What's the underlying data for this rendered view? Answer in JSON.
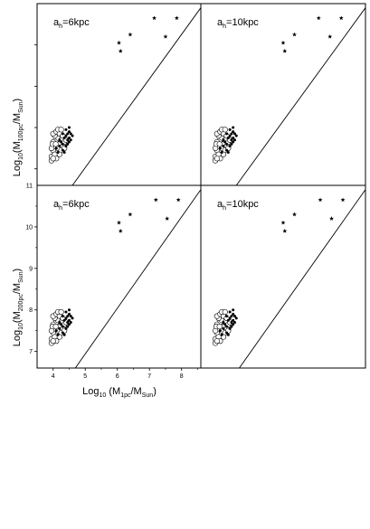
{
  "chart_data": {
    "type": "scatter",
    "xlabel": {
      "main": "Log",
      "sub1": "10",
      "mid": " (M",
      "sub2": "1pc",
      "sep": "/M",
      "sub3": "Sun",
      "end": ")"
    },
    "ylabel_top": {
      "main": "Log",
      "sub1": "10",
      "mid": "(M",
      "sub2": "100pc",
      "sep": "/M",
      "sub3": "Sun",
      "end": ")"
    },
    "ylabel_bottom": {
      "main": "Log",
      "sub1": "10",
      "mid": "(M",
      "sub2": "200pc",
      "sep": "/M",
      "sub3": "Sun",
      "end": ")"
    },
    "xlim": [
      3.5,
      8.6
    ],
    "xticks": [
      "4",
      "5",
      "6",
      "7",
      "8"
    ],
    "ylim_bottom": [
      6.6,
      11.0
    ],
    "yticks_bottom": [
      "7",
      "8",
      "9",
      "10"
    ],
    "ytick_top_visible": "11",
    "panels": [
      {
        "label": {
          "a": "a",
          "sub": "h",
          "rest": "=6kpc"
        },
        "stars": [
          [
            6.05,
            10.05
          ],
          [
            6.1,
            9.85
          ],
          [
            6.4,
            10.25
          ],
          [
            7.15,
            10.65
          ],
          [
            7.5,
            10.2
          ],
          [
            7.85,
            10.65
          ]
        ],
        "line": [
          [
            4.6,
            6.6
          ],
          [
            8.6,
            10.9
          ]
        ]
      },
      {
        "label": {
          "a": "a",
          "sub": "h",
          "rest": "=10kpc"
        },
        "stars": [
          [
            6.05,
            10.05
          ],
          [
            6.1,
            9.85
          ],
          [
            6.4,
            10.25
          ],
          [
            7.15,
            10.65
          ],
          [
            7.5,
            10.2
          ],
          [
            7.85,
            10.65
          ]
        ],
        "line": [
          [
            4.6,
            6.6
          ],
          [
            8.6,
            10.9
          ]
        ]
      },
      {
        "label": {
          "a": "a",
          "sub": "h",
          "rest": "=6kpc"
        },
        "stars": [
          [
            6.05,
            10.1
          ],
          [
            6.1,
            9.9
          ],
          [
            6.4,
            10.3
          ],
          [
            7.2,
            10.65
          ],
          [
            7.55,
            10.2
          ],
          [
            7.9,
            10.65
          ]
        ],
        "line": [
          [
            4.6,
            6.5
          ],
          [
            8.6,
            10.9
          ]
        ]
      },
      {
        "label": {
          "a": "a",
          "sub": "h",
          "rest": "=10kpc"
        },
        "stars": [
          [
            6.05,
            10.1
          ],
          [
            6.1,
            9.9
          ],
          [
            6.4,
            10.3
          ],
          [
            7.2,
            10.65
          ],
          [
            7.55,
            10.2
          ],
          [
            7.9,
            10.65
          ]
        ],
        "line": [
          [
            4.6,
            6.5
          ],
          [
            8.6,
            10.9
          ]
        ]
      }
    ],
    "circles_per_panel": [
      [
        3.95,
        7.3
      ],
      [
        4.0,
        7.45
      ],
      [
        4.05,
        7.55
      ],
      [
        4.1,
        7.7
      ],
      [
        4.0,
        7.65
      ],
      [
        3.95,
        7.5
      ],
      [
        4.05,
        7.35
      ],
      [
        4.1,
        7.25
      ],
      [
        4.15,
        7.5
      ],
      [
        4.2,
        7.6
      ],
      [
        4.15,
        7.75
      ],
      [
        4.05,
        7.8
      ],
      [
        4.0,
        7.85
      ],
      [
        4.1,
        7.9
      ],
      [
        4.2,
        7.85
      ],
      [
        4.25,
        7.7
      ],
      [
        4.3,
        7.55
      ],
      [
        4.25,
        7.45
      ],
      [
        4.35,
        7.65
      ],
      [
        4.3,
        7.8
      ],
      [
        3.95,
        7.2
      ],
      [
        4.0,
        7.25
      ],
      [
        4.2,
        7.35
      ],
      [
        4.35,
        7.5
      ],
      [
        4.4,
        7.7
      ],
      [
        4.15,
        7.95
      ],
      [
        4.25,
        7.95
      ],
      [
        3.98,
        7.6
      ],
      [
        4.08,
        7.6
      ]
    ],
    "dots_per_panel": [
      [
        4.3,
        7.6
      ],
      [
        4.35,
        7.75
      ],
      [
        4.4,
        7.8
      ],
      [
        4.45,
        7.7
      ],
      [
        4.5,
        7.65
      ],
      [
        4.4,
        7.55
      ],
      [
        4.45,
        7.85
      ],
      [
        4.5,
        7.9
      ],
      [
        4.3,
        7.45
      ],
      [
        4.2,
        7.55
      ],
      [
        4.25,
        7.65
      ],
      [
        4.35,
        7.4
      ],
      [
        4.45,
        7.6
      ],
      [
        4.5,
        7.75
      ],
      [
        4.55,
        7.85
      ],
      [
        4.4,
        7.95
      ],
      [
        4.1,
        7.5
      ],
      [
        4.15,
        7.4
      ],
      [
        4.2,
        7.7
      ],
      [
        4.3,
        7.85
      ],
      [
        4.55,
        7.7
      ],
      [
        4.6,
        7.8
      ],
      [
        4.5,
        8.0
      ]
    ]
  }
}
